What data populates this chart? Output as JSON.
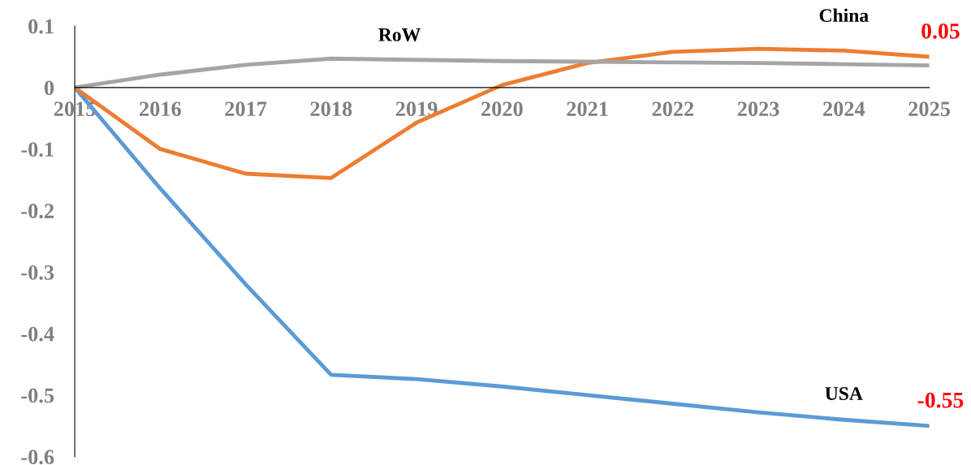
{
  "chart_data": {
    "type": "line",
    "x": [
      2015,
      2016,
      2017,
      2018,
      2019,
      2020,
      2021,
      2022,
      2023,
      2024,
      2025
    ],
    "xlim": [
      2015,
      2025
    ],
    "xticks": [
      2015,
      2016,
      2017,
      2018,
      2019,
      2020,
      2021,
      2022,
      2023,
      2024,
      2025
    ],
    "ylim": [
      -0.6,
      0.1
    ],
    "yticks": [
      0.1,
      0,
      -0.1,
      -0.2,
      -0.3,
      -0.4,
      -0.5,
      -0.6
    ],
    "grid": false,
    "legend": false,
    "marker": "none",
    "line_style": "solid",
    "series": [
      {
        "name": "USA",
        "color": "#5b9bd5",
        "values": [
          0,
          -0.164,
          -0.32,
          -0.467,
          -0.474,
          -0.486,
          -0.5,
          -0.514,
          -0.528,
          -0.54,
          -0.55
        ],
        "value_labels": [
          null,
          null,
          null,
          null,
          null,
          null,
          null,
          null,
          null,
          null,
          "-0.55"
        ]
      },
      {
        "name": "China",
        "color": "#ed7d31",
        "values": [
          0,
          -0.1,
          -0.14,
          -0.147,
          -0.057,
          0.004,
          0.04,
          0.058,
          0.063,
          0.06,
          0.05
        ],
        "value_labels": [
          null,
          null,
          null,
          null,
          null,
          null,
          null,
          null,
          null,
          null,
          "0.05"
        ]
      },
      {
        "name": "RoW",
        "color": "#a5a5a5",
        "values": [
          0,
          0.021,
          0.037,
          0.047,
          0.045,
          0.043,
          0.042,
          0.041,
          0.04,
          0.038,
          0.036
        ],
        "value_labels": [
          null,
          null,
          null,
          null,
          null,
          null,
          null,
          null,
          null,
          null,
          null
        ]
      }
    ]
  }
}
